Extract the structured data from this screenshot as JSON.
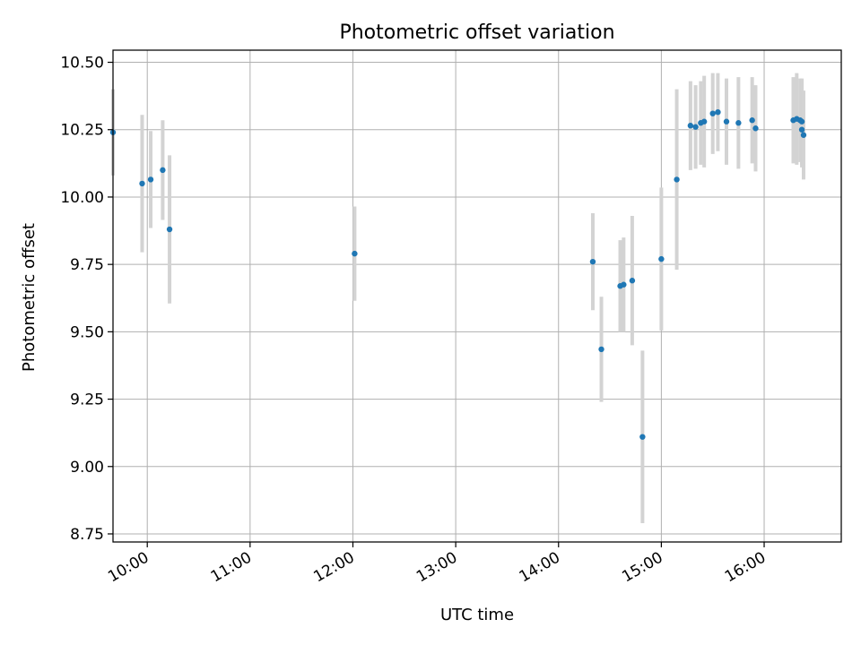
{
  "chart_data": {
    "type": "scatter",
    "title": "Photometric offset variation",
    "xlabel": "UTC time",
    "ylabel": "Photometric offset",
    "x_ticks": [
      "10:00",
      "11:00",
      "12:00",
      "13:00",
      "14:00",
      "15:00",
      "16:00"
    ],
    "y_ticks": [
      "8.75",
      "9.00",
      "9.25",
      "9.50",
      "9.75",
      "10.00",
      "10.25",
      "10.50"
    ],
    "xlim": [
      "09:40",
      "16:45"
    ],
    "ylim": [
      8.72,
      10.545
    ],
    "grid": true,
    "marker_color": "#1f77b4",
    "errorbar_color": "#d3d3d3",
    "points": [
      {
        "x": "09:40",
        "y": 10.24,
        "err": 0.16
      },
      {
        "x": "09:57",
        "y": 10.05,
        "err": 0.255
      },
      {
        "x": "10:02",
        "y": 10.065,
        "err": 0.18
      },
      {
        "x": "10:09",
        "y": 10.1,
        "err": 0.185
      },
      {
        "x": "10:13",
        "y": 9.88,
        "err": 0.275
      },
      {
        "x": "12:01",
        "y": 9.79,
        "err": 0.175
      },
      {
        "x": "14:20",
        "y": 9.76,
        "err": 0.18
      },
      {
        "x": "14:25",
        "y": 9.435,
        "err": 0.195
      },
      {
        "x": "14:36",
        "y": 9.67,
        "err": 0.17
      },
      {
        "x": "14:38",
        "y": 9.675,
        "err": 0.175
      },
      {
        "x": "14:43",
        "y": 9.69,
        "err": 0.24
      },
      {
        "x": "14:49",
        "y": 9.11,
        "err": 0.32
      },
      {
        "x": "15:00",
        "y": 9.77,
        "err": 0.265
      },
      {
        "x": "15:09",
        "y": 10.065,
        "err": 0.335
      },
      {
        "x": "15:17",
        "y": 10.265,
        "err": 0.165
      },
      {
        "x": "15:20",
        "y": 10.26,
        "err": 0.155
      },
      {
        "x": "15:23",
        "y": 10.275,
        "err": 0.155
      },
      {
        "x": "15:25",
        "y": 10.28,
        "err": 0.17
      },
      {
        "x": "15:30",
        "y": 10.31,
        "err": 0.15
      },
      {
        "x": "15:33",
        "y": 10.315,
        "err": 0.145
      },
      {
        "x": "15:38",
        "y": 10.28,
        "err": 0.16
      },
      {
        "x": "15:45",
        "y": 10.275,
        "err": 0.17
      },
      {
        "x": "15:53",
        "y": 10.285,
        "err": 0.16
      },
      {
        "x": "15:55",
        "y": 10.255,
        "err": 0.16
      },
      {
        "x": "16:17",
        "y": 10.285,
        "err": 0.16
      },
      {
        "x": "16:19",
        "y": 10.29,
        "err": 0.17
      },
      {
        "x": "16:21",
        "y": 10.285,
        "err": 0.155
      },
      {
        "x": "16:22",
        "y": 10.28,
        "err": 0.16
      },
      {
        "x": "16:22",
        "y": 10.25,
        "err": 0.14
      },
      {
        "x": "16:23",
        "y": 10.23,
        "err": 0.165
      }
    ]
  }
}
